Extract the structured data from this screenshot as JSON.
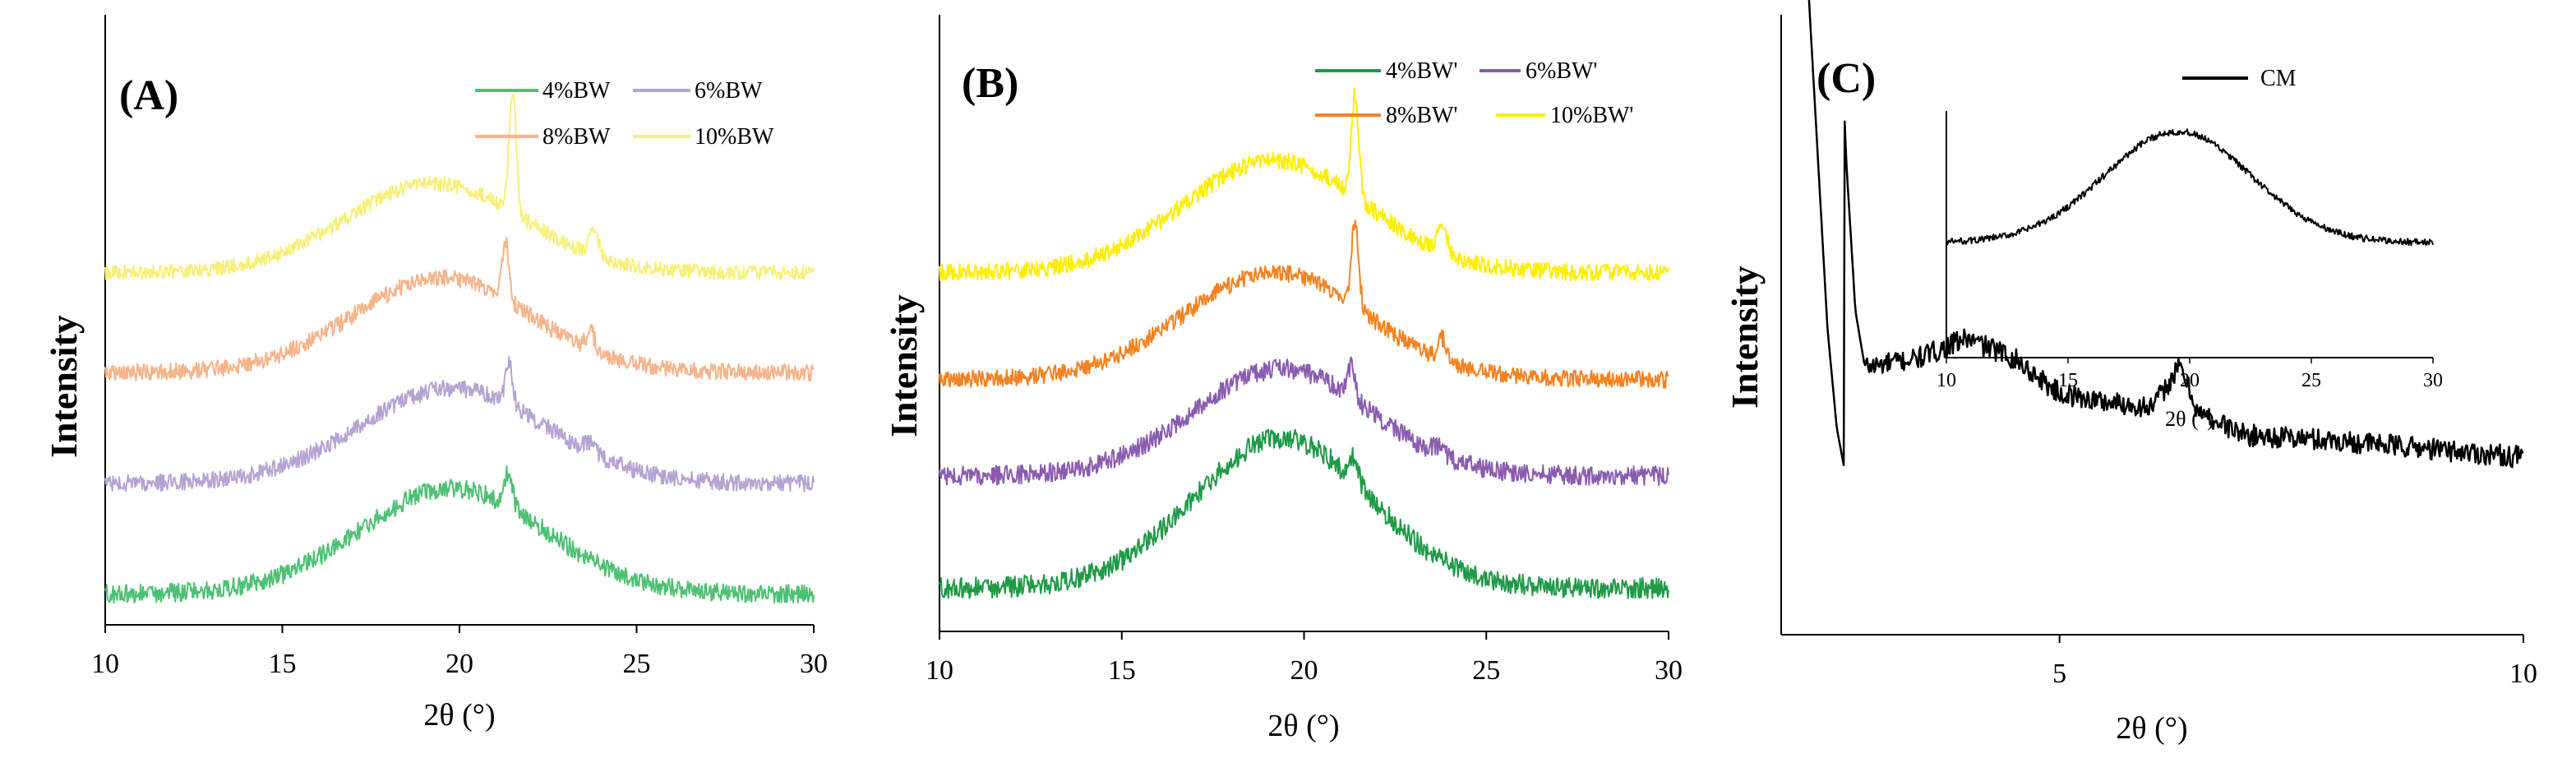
{
  "panels": {
    "A": {
      "label": "(A)",
      "xlabel": "2θ (°)",
      "ylabel": "Intensity",
      "xticks": [
        "10",
        "15",
        "20",
        "25",
        "30"
      ]
    },
    "B": {
      "label": "(B)",
      "xlabel": "2θ (°)",
      "ylabel": "Intensity",
      "xticks": [
        "10",
        "15",
        "20",
        "25",
        "30"
      ]
    },
    "C": {
      "label": "(C)",
      "xlabel": "2θ (°)",
      "ylabel": "Intensity",
      "xticks": [
        "5",
        "10"
      ],
      "inset": {
        "xlabel": "2θ (°)",
        "xticks": [
          "10",
          "15",
          "20",
          "25",
          "30"
        ]
      }
    }
  },
  "chart_data": [
    {
      "id": "A",
      "type": "line",
      "title": "(A)",
      "xlabel": "2θ (°)",
      "ylabel": "Intensity",
      "xlim": [
        10,
        30
      ],
      "legend_position": "top-right",
      "series": [
        {
          "name": "4%BW",
          "color": "#4dc173",
          "offset": 0,
          "amp": 1.0,
          "center": 19.8,
          "width": 2.6,
          "peaks": [
            [
              21.4,
              0.35,
              0.1
            ]
          ],
          "noise": 0.09
        },
        {
          "name": "6%BW",
          "color": "#b5a3d2",
          "offset": 1.05,
          "amp": 0.9,
          "center": 19.8,
          "width": 2.6,
          "peaks": [
            [
              21.4,
              0.4,
              0.1
            ],
            [
              23.7,
              0.1,
              0.15
            ]
          ],
          "noise": 0.08
        },
        {
          "name": "8%BW",
          "color": "#f5b48a",
          "offset": 2.1,
          "amp": 0.9,
          "center": 19.5,
          "width": 2.5,
          "peaks": [
            [
              21.3,
              0.55,
              0.1
            ],
            [
              23.7,
              0.18,
              0.12
            ]
          ],
          "noise": 0.08
        },
        {
          "name": "10%BW",
          "color": "#f7f07a",
          "offset": 3.05,
          "amp": 0.85,
          "center": 19.3,
          "width": 2.5,
          "peaks": [
            [
              21.5,
              1.15,
              0.1
            ],
            [
              23.8,
              0.25,
              0.12
            ]
          ],
          "noise": 0.07
        }
      ]
    },
    {
      "id": "B",
      "type": "line",
      "title": "(B)",
      "xlabel": "2θ (°)",
      "ylabel": "Intensity",
      "xlim": [
        10,
        30
      ],
      "legend_position": "top-right",
      "series": [
        {
          "name": "4%BW'",
          "color": "#1f9a48",
          "offset": 0,
          "amp": 1.4,
          "center": 19.4,
          "width": 2.4,
          "peaks": [
            [
              21.4,
              0.25,
              0.1
            ]
          ],
          "noise": 0.1
        },
        {
          "name": "6%BW'",
          "color": "#8a5cb0",
          "offset": 1.05,
          "amp": 1.0,
          "center": 19.4,
          "width": 2.4,
          "peaks": [
            [
              21.3,
              0.3,
              0.1
            ],
            [
              23.7,
              0.08,
              0.15
            ]
          ],
          "noise": 0.09
        },
        {
          "name": "8%BW'",
          "color": "#f58220",
          "offset": 1.95,
          "amp": 1.0,
          "center": 19.2,
          "width": 2.5,
          "peaks": [
            [
              21.4,
              0.8,
              0.1
            ],
            [
              23.8,
              0.2,
              0.12
            ]
          ],
          "noise": 0.08
        },
        {
          "name": "10%BW'",
          "color": "#ffee00",
          "offset": 2.95,
          "amp": 1.05,
          "center": 19.2,
          "width": 2.5,
          "peaks": [
            [
              21.4,
              0.95,
              0.1
            ],
            [
              23.8,
              0.25,
              0.12
            ]
          ],
          "noise": 0.08
        }
      ]
    },
    {
      "id": "C",
      "type": "line",
      "title": "(C)",
      "xlabel": "2θ (°)",
      "ylabel": "Intensity",
      "xlim": [
        2,
        10
      ],
      "legend_position": "top-right",
      "series": [
        {
          "name": "CM",
          "color": "#000000",
          "points": [
            [
              2.3,
              10.0
            ],
            [
              2.4,
              7.0
            ],
            [
              2.5,
              4.0
            ],
            [
              2.6,
              2.2
            ],
            [
              2.7,
              1.3
            ],
            [
              2.8,
              0.75
            ],
            [
              2.9,
              0.55
            ],
            [
              3.0,
              0.55
            ],
            [
              3.5,
              0.58
            ],
            [
              4.0,
              0.65
            ],
            [
              4.5,
              0.58
            ],
            [
              5.0,
              0.45
            ],
            [
              5.5,
              0.42
            ],
            [
              6.0,
              0.4
            ],
            [
              6.3,
              0.55
            ],
            [
              6.5,
              0.38
            ],
            [
              7.0,
              0.3
            ],
            [
              8.0,
              0.28
            ],
            [
              9.0,
              0.25
            ],
            [
              10.0,
              0.22
            ]
          ],
          "noise": 0.04
        }
      ],
      "inset": {
        "xlabel": "2θ (°)",
        "xlim": [
          10,
          30
        ],
        "series": [
          {
            "name": "CM",
            "color": "#000000",
            "offset": 0,
            "amp": 1.0,
            "center": 19.5,
            "width": 3.0,
            "peaks": [],
            "noise": 0.03
          }
        ]
      }
    }
  ]
}
